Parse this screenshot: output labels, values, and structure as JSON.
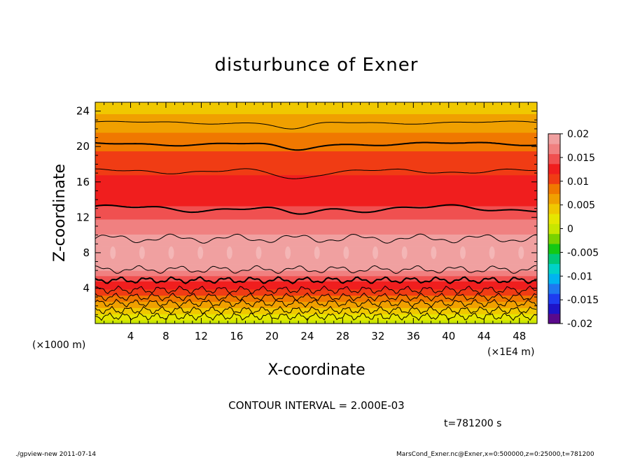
{
  "chart_data": {
    "type": "heatmap",
    "title": "disturbunce of Exner",
    "xlabel": "X-coordinate",
    "ylabel": "Z-coordinate",
    "x_unit": "(×1E4 m)",
    "y_unit": "(×1000 m)",
    "xlim": [
      0,
      50
    ],
    "ylim": [
      0,
      25
    ],
    "x_ticks": [
      "4",
      "8",
      "12",
      "16",
      "20",
      "24",
      "28",
      "32",
      "36",
      "40",
      "44",
      "48"
    ],
    "y_ticks": [
      "4",
      "8",
      "12",
      "16",
      "20",
      "24"
    ],
    "colorbar": {
      "range": [
        -0.02,
        0.02
      ],
      "labels": [
        "0.02",
        "0.015",
        "0.01",
        "0.005",
        "0",
        "-0.005",
        "-0.01",
        "-0.015",
        "-0.02"
      ],
      "colors": [
        "#5a0a8c",
        "#1e14c8",
        "#1e3cf0",
        "#1e78f0",
        "#00b4f0",
        "#00d2c8",
        "#00c878",
        "#14c814",
        "#78d200",
        "#c8e600",
        "#e6e600",
        "#f0c800",
        "#f0a000",
        "#f07800",
        "#f03c14",
        "#f01e1e",
        "#f05050",
        "#f08080",
        "#f0a0a0"
      ]
    },
    "profile": {
      "z": [
        0,
        1,
        2,
        3,
        4,
        5,
        6,
        7,
        8,
        9,
        10,
        11,
        12,
        13,
        14,
        16,
        18,
        20,
        22,
        24,
        25
      ],
      "value": [
        0.0,
        0.003,
        0.006,
        0.009,
        0.012,
        0.014,
        0.018,
        0.019,
        0.0195,
        0.019,
        0.018,
        0.017,
        0.0155,
        0.014,
        0.013,
        0.012,
        0.011,
        0.009,
        0.007,
        0.005,
        0.004
      ]
    },
    "contour_interval": "CONTOUR INTERVAL = 2.000E-03",
    "time_label": "t=781200 s"
  },
  "footer": {
    "left": "./gpview-new   2011-07-14",
    "right": "MarsCond_Exner.nc@Exner,x=0:500000,z=0:25000,t=781200"
  }
}
